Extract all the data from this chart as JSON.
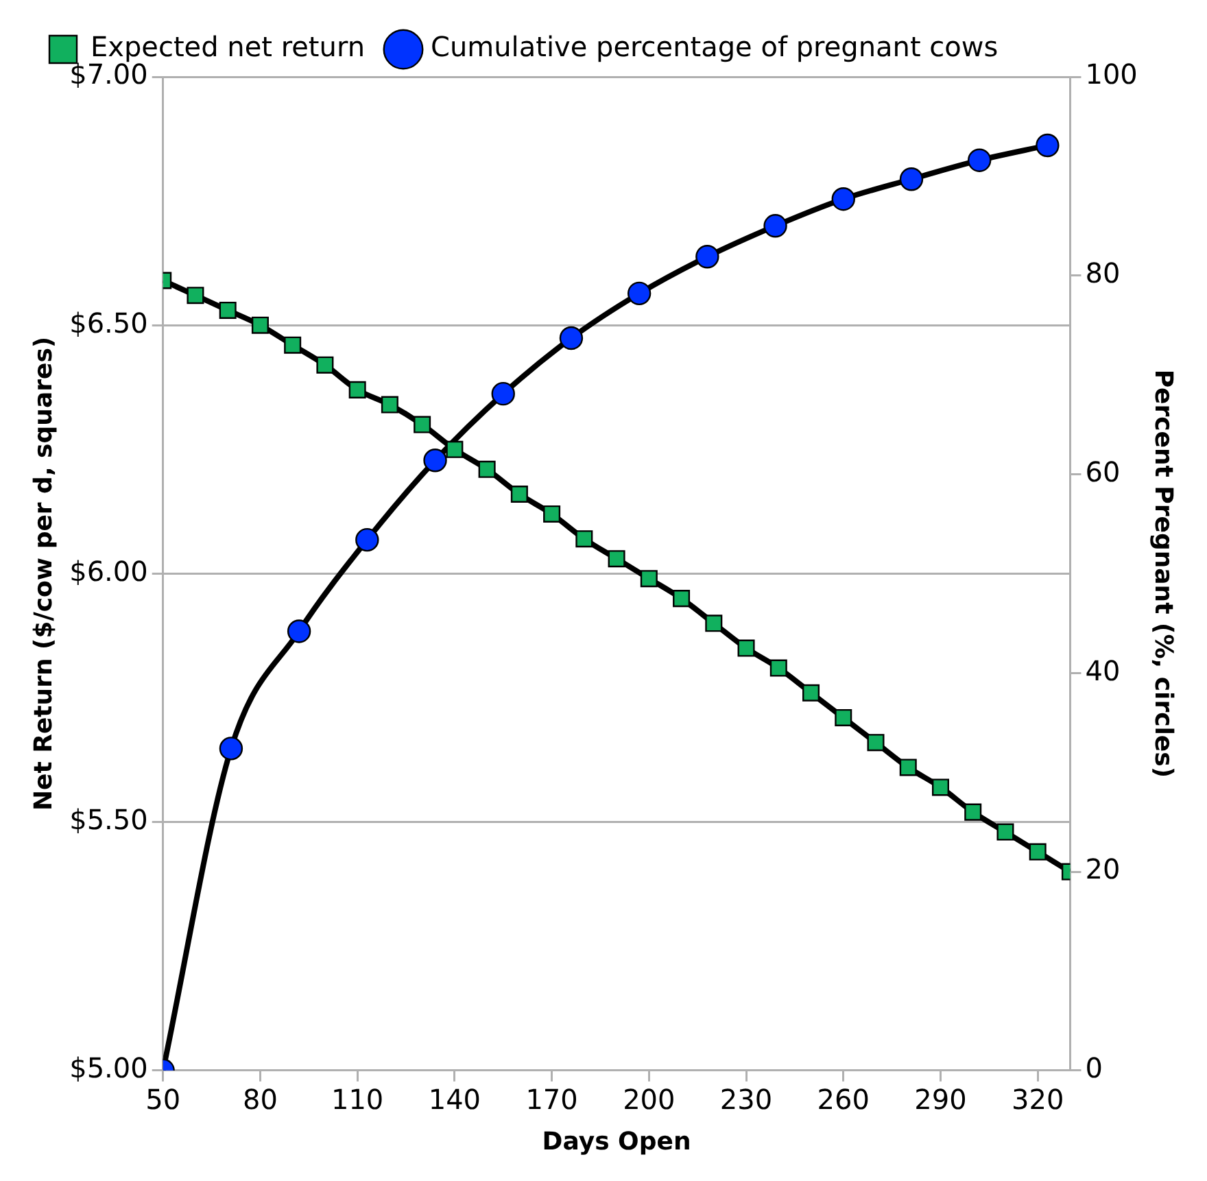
{
  "chart_data": {
    "type": "line",
    "xlabel": "Days Open",
    "ylabel": "Net Return ($/cow per d, squares)",
    "y2label": "Percent Pregnant (%, circles)",
    "xlim": [
      50,
      330
    ],
    "xticks": [
      50,
      80,
      110,
      140,
      170,
      200,
      230,
      260,
      290,
      320
    ],
    "ylim": [
      5,
      7
    ],
    "yticks": [
      {
        "value": 5,
        "label": "$5.00"
      },
      {
        "value": 5.5,
        "label": "$5.50"
      },
      {
        "value": 6,
        "label": "$6.00"
      },
      {
        "value": 6.5,
        "label": "$6.50"
      },
      {
        "value": 7,
        "label": "$7.00"
      }
    ],
    "y2lim": [
      0,
      100
    ],
    "y2ticks": [
      0,
      20,
      40,
      60,
      80,
      100
    ],
    "grid": "y",
    "legend": "top left",
    "line_style": "solid",
    "series": [
      {
        "name": "Expected net return",
        "color": "#11b05e",
        "marker": "square",
        "x": [
          50,
          60,
          70,
          80,
          90,
          100,
          110,
          120,
          130,
          140,
          150,
          160,
          170,
          180,
          190,
          200,
          210,
          220,
          230,
          240,
          250,
          260,
          270,
          280,
          290,
          300,
          310,
          320,
          330
        ],
        "values": [
          6.59,
          6.56,
          6.53,
          6.5,
          6.46,
          6.42,
          6.37,
          6.34,
          6.3,
          6.25,
          6.21,
          6.16,
          6.12,
          6.07,
          6.03,
          5.99,
          5.95,
          5.9,
          5.85,
          5.81,
          5.76,
          5.71,
          5.66,
          5.61,
          5.57,
          5.52,
          5.48,
          5.44,
          5.4
        ]
      },
      {
        "name": "Cumulative percentage of pregnant cows",
        "color": "#0033ff",
        "marker": "circle",
        "axis": "y2",
        "x": [
          50,
          71,
          92,
          113,
          134,
          155,
          176,
          197,
          218,
          239,
          260,
          281,
          302,
          323
        ],
        "values": [
          0,
          32.4,
          44.2,
          53.4,
          61.4,
          68.1,
          73.7,
          78.2,
          81.9,
          85,
          87.7,
          89.7,
          91.6,
          93.1
        ]
      }
    ]
  }
}
